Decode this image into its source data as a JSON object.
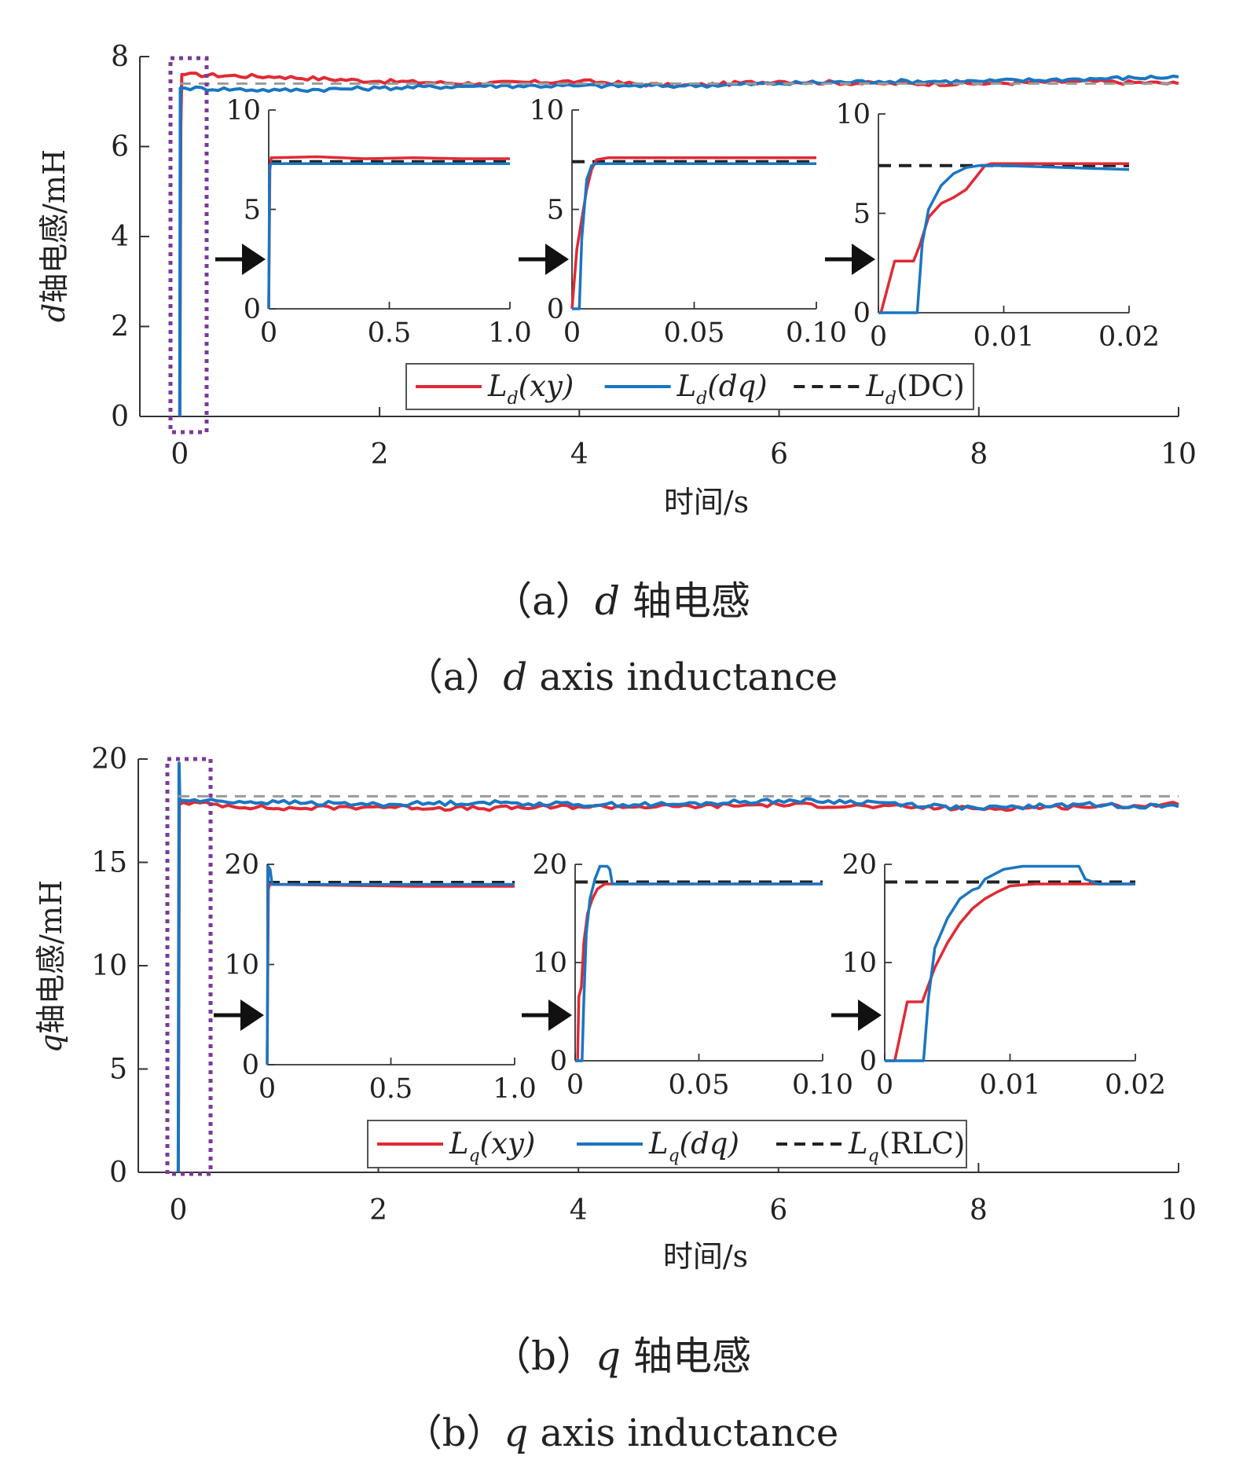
{
  "colors": {
    "xy": "#e02a35",
    "dq": "#1a76c2",
    "ref": "#222222",
    "ref_main": "#9a9a9a",
    "highlight": "#7a3a98",
    "axis": "#333333"
  },
  "chart_data": [
    {
      "id": "a",
      "type": "line",
      "ylabel_var": "d",
      "ylabel": "轴电感/mH",
      "xlabel": "时间/s",
      "xlim": [
        -0.4,
        10
      ],
      "ylim": [
        0,
        8
      ],
      "xticks": [
        "0",
        "2",
        "4",
        "6",
        "8",
        "10"
      ],
      "yticks": [
        "0",
        "2",
        "4",
        "6",
        "8"
      ],
      "series": [
        {
          "key": "xy",
          "name": "L",
          "sub": "d",
          "arg": "(xy)",
          "style": "solid",
          "color_key": "xy",
          "x": [
            0,
            0.01,
            0.02,
            0.05,
            1,
            2,
            3,
            4,
            5,
            6,
            7,
            8,
            9,
            10
          ],
          "y": [
            0,
            6.5,
            7.6,
            7.6,
            7.55,
            7.45,
            7.4,
            7.45,
            7.35,
            7.45,
            7.4,
            7.4,
            7.45,
            7.4
          ]
        },
        {
          "key": "dq",
          "name": "L",
          "sub": "d",
          "arg": "(dq)",
          "style": "solid",
          "color_key": "dq",
          "x": [
            0,
            0.005,
            0.01,
            0.05,
            1,
            2,
            3,
            4,
            5,
            6,
            7,
            8,
            9,
            10
          ],
          "y": [
            0,
            7.3,
            7.3,
            7.3,
            7.25,
            7.3,
            7.35,
            7.35,
            7.35,
            7.4,
            7.45,
            7.45,
            7.5,
            7.55
          ]
        },
        {
          "key": "ref",
          "name": "L",
          "sub": "d",
          "arg": "(DC)",
          "style": "dashed",
          "color_key": "ref",
          "x": [
            0,
            10
          ],
          "y": [
            7.4,
            7.4
          ]
        }
      ],
      "insets": [
        {
          "xlim": [
            0,
            1
          ],
          "ylim": [
            0,
            10
          ],
          "xticks": [
            "0",
            "0.5",
            "1.0"
          ],
          "yticks": [
            "0",
            "5",
            "10"
          ],
          "ref": 7.4,
          "xy": {
            "x": [
              0,
              0.005,
              0.01,
              0.2,
              0.4,
              0.6,
              0.8,
              1.0
            ],
            "y": [
              0,
              7.0,
              7.6,
              7.65,
              7.55,
              7.6,
              7.55,
              7.55
            ]
          },
          "dq": {
            "x": [
              0,
              0.004,
              0.01,
              0.3,
              0.6,
              1.0
            ],
            "y": [
              0,
              7.2,
              7.3,
              7.3,
              7.3,
              7.3
            ]
          }
        },
        {
          "xlim": [
            0,
            0.1
          ],
          "ylim": [
            0,
            10
          ],
          "xticks": [
            "0",
            "0.05",
            "0.10"
          ],
          "yticks": [
            "0",
            "5",
            "10"
          ],
          "ref": 7.4,
          "xy": {
            "x": [
              0,
              0.002,
              0.004,
              0.006,
              0.008,
              0.01,
              0.015,
              0.05,
              0.1
            ],
            "y": [
              0,
              3.0,
              4.5,
              6.0,
              7.0,
              7.5,
              7.6,
              7.6,
              7.6
            ]
          },
          "dq": {
            "x": [
              0,
              0.003,
              0.004,
              0.006,
              0.008,
              0.01,
              0.05,
              0.1
            ],
            "y": [
              0,
              0,
              3.5,
              6.5,
              7.2,
              7.3,
              7.3,
              7.3
            ]
          }
        },
        {
          "xlim": [
            0,
            0.02
          ],
          "ylim": [
            0,
            10
          ],
          "xticks": [
            "0",
            "0.01",
            "0.02"
          ],
          "yticks": [
            "0",
            "5",
            "10"
          ],
          "ref": 7.4,
          "xy": {
            "x": [
              0,
              0.0002,
              0.0013,
              0.002,
              0.0028,
              0.0033,
              0.004,
              0.005,
              0.006,
              0.007,
              0.0075,
              0.008,
              0.0085,
              0.009,
              0.012,
              0.02
            ],
            "y": [
              0,
              0,
              2.6,
              2.6,
              2.6,
              3.4,
              4.8,
              5.5,
              5.8,
              6.2,
              6.6,
              7.0,
              7.4,
              7.5,
              7.5,
              7.5
            ]
          },
          "dq": {
            "x": [
              0,
              0.0031,
              0.0035,
              0.004,
              0.005,
              0.006,
              0.007,
              0.008,
              0.01,
              0.015,
              0.02
            ],
            "y": [
              0,
              0,
              3.5,
              5.2,
              6.4,
              7.0,
              7.3,
              7.4,
              7.4,
              7.3,
              7.2
            ]
          }
        }
      ]
    },
    {
      "id": "b",
      "type": "line",
      "ylabel_var": "q",
      "ylabel": "轴电感/mH",
      "xlabel": "时间/s",
      "xlim": [
        -0.4,
        10
      ],
      "ylim": [
        0,
        20
      ],
      "xticks": [
        "0",
        "2",
        "4",
        "6",
        "8",
        "10"
      ],
      "yticks": [
        "0",
        "5",
        "10",
        "15",
        "20"
      ],
      "series": [
        {
          "key": "xy",
          "name": "L",
          "sub": "q",
          "arg": "(xy)",
          "style": "solid",
          "color_key": "xy",
          "x": [
            0,
            0.01,
            0.05,
            1,
            2,
            3,
            4,
            5,
            6,
            7,
            8,
            9,
            10
          ],
          "y": [
            0,
            17.8,
            17.9,
            17.6,
            17.7,
            17.6,
            17.7,
            17.7,
            17.8,
            17.7,
            17.6,
            17.7,
            17.8
          ]
        },
        {
          "key": "dq",
          "name": "L",
          "sub": "q",
          "arg": "(dq)",
          "style": "solid",
          "color_key": "dq",
          "x": [
            0,
            0.008,
            0.015,
            0.05,
            1,
            2,
            3,
            4,
            5,
            6,
            7,
            8,
            9,
            10
          ],
          "y": [
            0,
            19.8,
            18.0,
            18.0,
            17.9,
            17.8,
            17.9,
            17.8,
            17.8,
            18.0,
            17.9,
            17.6,
            17.8,
            17.7
          ]
        },
        {
          "key": "ref",
          "name": "L",
          "sub": "q",
          "arg": "(RLC)",
          "style": "dashed",
          "color_key": "ref",
          "x": [
            0,
            10
          ],
          "y": [
            18.2,
            18.2
          ]
        }
      ],
      "insets": [
        {
          "xlim": [
            0,
            1
          ],
          "ylim": [
            0,
            20
          ],
          "xticks": [
            "0",
            "0.5",
            "1.0"
          ],
          "yticks": [
            "0",
            "10",
            "20"
          ],
          "ref": 18.2,
          "xy": {
            "x": [
              0,
              0.005,
              0.01,
              0.3,
              0.6,
              1.0
            ],
            "y": [
              0,
              17.5,
              18.0,
              17.9,
              17.8,
              17.8
            ]
          },
          "dq": {
            "x": [
              0,
              0.004,
              0.012,
              0.02,
              0.5,
              1.0
            ],
            "y": [
              0,
              19.8,
              19.5,
              18.0,
              18.0,
              18.0
            ]
          }
        },
        {
          "xlim": [
            0,
            0.1
          ],
          "ylim": [
            0,
            20
          ],
          "xticks": [
            "0",
            "0.05",
            "0.10"
          ],
          "yticks": [
            "0",
            "10",
            "20"
          ],
          "ref": 18.2,
          "xy": {
            "x": [
              0,
              0.001,
              0.0015,
              0.0025,
              0.0035,
              0.005,
              0.007,
              0.009,
              0.012,
              0.1
            ],
            "y": [
              0,
              0,
              6.5,
              7.5,
              12.0,
              15.0,
              16.5,
              17.5,
              18.0,
              18.0
            ]
          },
          "dq": {
            "x": [
              0,
              0.0028,
              0.0035,
              0.0045,
              0.006,
              0.008,
              0.01,
              0.013,
              0.014,
              0.015,
              0.1
            ],
            "y": [
              0,
              0,
              6.0,
              13.0,
              16.5,
              18.5,
              19.8,
              19.8,
              19.5,
              18.0,
              18.0
            ]
          }
        },
        {
          "xlim": [
            0,
            0.02
          ],
          "ylim": [
            0,
            20
          ],
          "xticks": [
            "0",
            "0.01",
            "0.02"
          ],
          "yticks": [
            "0",
            "10",
            "20"
          ],
          "ref": 18.2,
          "xy": {
            "x": [
              0,
              0.0008,
              0.0018,
              0.0024,
              0.003,
              0.004,
              0.005,
              0.006,
              0.007,
              0.008,
              0.009,
              0.01,
              0.012,
              0.02
            ],
            "y": [
              0,
              0,
              6.0,
              6.0,
              6.0,
              9.5,
              12.0,
              14.0,
              15.5,
              16.5,
              17.2,
              17.8,
              18.0,
              18.0
            ]
          },
          "dq": {
            "x": [
              0,
              0.0031,
              0.0035,
              0.004,
              0.005,
              0.006,
              0.007,
              0.0075,
              0.008,
              0.0095,
              0.011,
              0.013,
              0.0155,
              0.016,
              0.017,
              0.02
            ],
            "y": [
              0,
              0,
              6.5,
              11.5,
              14.5,
              16.5,
              17.4,
              17.6,
              18.5,
              19.5,
              19.8,
              19.8,
              19.8,
              18.5,
              18.0,
              18.0
            ]
          }
        }
      ]
    }
  ],
  "captions": {
    "a_cn": {
      "prefix": "（a）",
      "var": "d",
      "text": " 轴电感"
    },
    "a_en": {
      "prefix": "（a）",
      "var": "d",
      "text": " axis inductance"
    },
    "b_cn": {
      "prefix": "（b）",
      "var": "q",
      "text": " 轴电感"
    },
    "b_en": {
      "prefix": "（b）",
      "var": "q",
      "text": " axis inductance"
    }
  }
}
